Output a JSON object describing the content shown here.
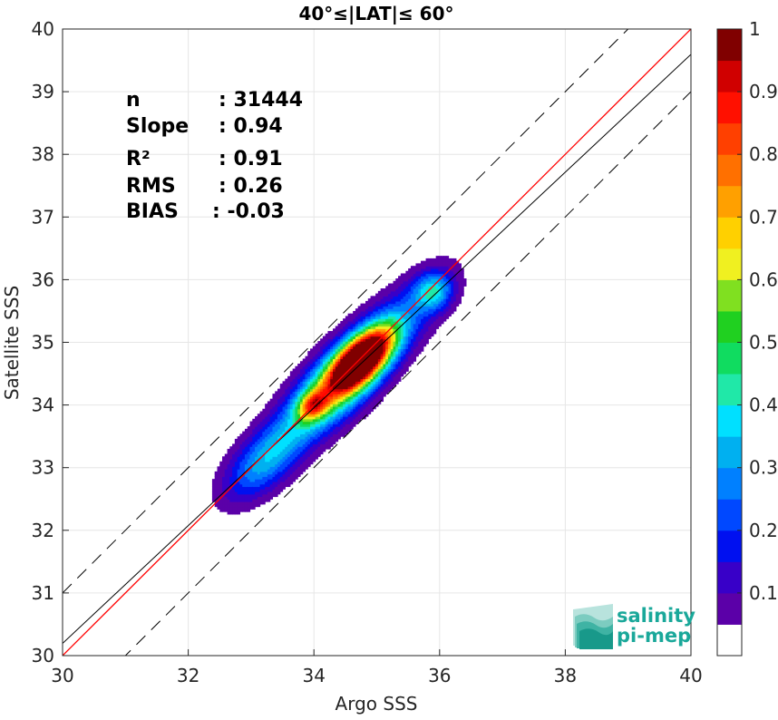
{
  "chart_data": {
    "type": "density contour scatter",
    "title": "40°≤|LAT|≤ 60°",
    "xlabel": "Argo SSS",
    "ylabel": "Satellite SSS",
    "xlim": [
      30,
      40
    ],
    "ylim": [
      30,
      40
    ],
    "xticks": [
      30,
      32,
      34,
      36,
      38,
      40
    ],
    "yticks": [
      30,
      31,
      32,
      33,
      34,
      35,
      36,
      37,
      38,
      39,
      40
    ],
    "grid": true,
    "stats": [
      {
        "label": "n",
        "value": ": 31444"
      },
      {
        "label": "Slope",
        "value": ": 0.94"
      },
      {
        "label": "R²",
        "value": ": 0.91"
      },
      {
        "label": "RMS",
        "value": ": 0.26"
      },
      {
        "label": "BIAS",
        "value": ": -0.03"
      }
    ],
    "lines": {
      "identity": {
        "slope": 1,
        "intercept": 0,
        "color": "#ff0000"
      },
      "regression": {
        "slope": 0.94,
        "intercept": 1.995,
        "color": "#000000"
      },
      "identity_plus_offset": {
        "offset": 1,
        "style": "dashed"
      },
      "identity_minus_offset": {
        "offset": -1,
        "style": "dashed"
      }
    },
    "density_peaks": [
      {
        "x": 34.75,
        "y": 34.73,
        "level": 1.0
      },
      {
        "x": 33.98,
        "y": 34.0,
        "level": 0.85
      },
      {
        "x": 35.9,
        "y": 35.82,
        "level": 0.3
      },
      {
        "x": 33.2,
        "y": 33.1,
        "level": 0.3
      }
    ],
    "colorbar": {
      "range": [
        0,
        1
      ],
      "ticks": [
        "0.1",
        "0.2",
        "0.3",
        "0.4",
        "0.5",
        "0.6",
        "0.7",
        "0.8",
        "0.9",
        "1"
      ],
      "levels": [
        {
          "from": 0.0,
          "to": 0.05,
          "color": "#ffffff"
        },
        {
          "from": 0.05,
          "to": 0.1,
          "color": "#5b00a8"
        },
        {
          "from": 0.1,
          "to": 0.15,
          "color": "#3800c8"
        },
        {
          "from": 0.15,
          "to": 0.2,
          "color": "#0010f0"
        },
        {
          "from": 0.2,
          "to": 0.25,
          "color": "#0048ff"
        },
        {
          "from": 0.25,
          "to": 0.3,
          "color": "#0080ff"
        },
        {
          "from": 0.3,
          "to": 0.35,
          "color": "#00b0f0"
        },
        {
          "from": 0.35,
          "to": 0.4,
          "color": "#00e0ff"
        },
        {
          "from": 0.4,
          "to": 0.45,
          "color": "#20e8a8"
        },
        {
          "from": 0.45,
          "to": 0.5,
          "color": "#10dc60"
        },
        {
          "from": 0.5,
          "to": 0.55,
          "color": "#20d020"
        },
        {
          "from": 0.55,
          "to": 0.6,
          "color": "#80e020"
        },
        {
          "from": 0.6,
          "to": 0.65,
          "color": "#f0f020"
        },
        {
          "from": 0.65,
          "to": 0.7,
          "color": "#ffd000"
        },
        {
          "from": 0.7,
          "to": 0.75,
          "color": "#ffa000"
        },
        {
          "from": 0.75,
          "to": 0.8,
          "color": "#ff7000"
        },
        {
          "from": 0.8,
          "to": 0.85,
          "color": "#ff4000"
        },
        {
          "from": 0.85,
          "to": 0.9,
          "color": "#ff1000"
        },
        {
          "from": 0.9,
          "to": 0.95,
          "color": "#d00000"
        },
        {
          "from": 0.95,
          "to": 1.0,
          "color": "#800000"
        }
      ]
    }
  },
  "logo": {
    "line1": "salinity",
    "line2": "pi-mep",
    "color": "#1aa89a"
  }
}
